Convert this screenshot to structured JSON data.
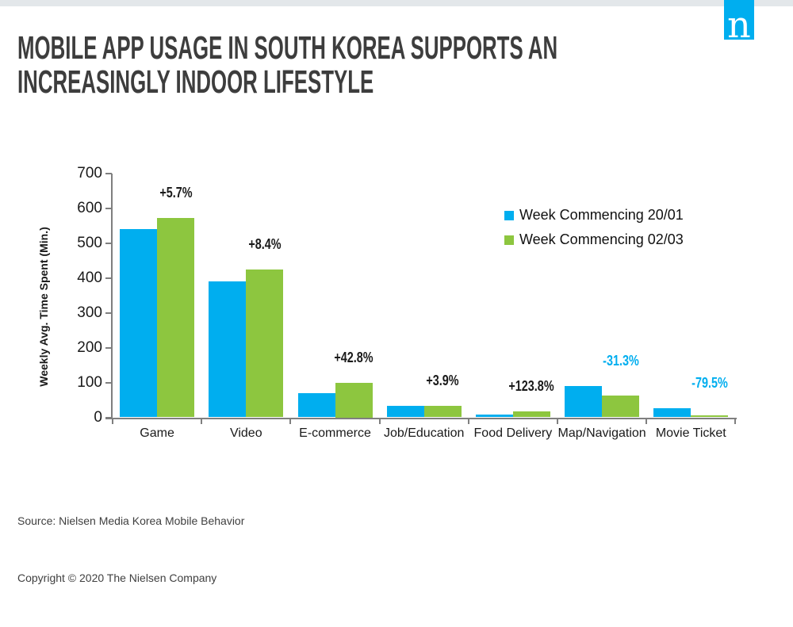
{
  "page": {
    "background_color": "#ffffff",
    "top_bar_color": "#e3e7ea"
  },
  "logo": {
    "letter": "n",
    "color": "#00aeef"
  },
  "header": {
    "title_line1": "MOBILE APP USAGE IN SOUTH KOREA SUPPORTS AN",
    "title_line2": "INCREASINGLY INDOOR LIFESTYLE",
    "color": "#3d3d3d"
  },
  "footer": {
    "source": "Source: Nielsen Media Korea Mobile Behavior",
    "copyright": "Copyright © 2020 The Nielsen Company"
  },
  "chart_data": {
    "type": "bar",
    "title": "MOBILE APP USAGE IN SOUTH KOREA SUPPORTS AN INCREASINGLY INDOOR LIFESTYLE",
    "categories": [
      "Game",
      "Video",
      "E-commerce",
      "Job/Education",
      "Food Delivery",
      "Map/Navigation",
      "Movie Ticket"
    ],
    "series": [
      {
        "name": "Week Commencing 20/01",
        "color": "#00aeef",
        "values": [
          540,
          390,
          70,
          33,
          8,
          90,
          26
        ]
      },
      {
        "name": "Week Commencing 02/03",
        "color": "#8dc63f",
        "values": [
          571,
          423,
          100,
          34,
          18,
          62,
          5.5
        ]
      }
    ],
    "change_labels": [
      {
        "text": "+5.7%",
        "color": "#1a1a1a"
      },
      {
        "text": "+8.4%",
        "color": "#1a1a1a"
      },
      {
        "text": "+42.8%",
        "color": "#1a1a1a"
      },
      {
        "text": "+3.9%",
        "color": "#1a1a1a"
      },
      {
        "text": "+123.8%",
        "color": "#1a1a1a"
      },
      {
        "text": "-31.3%",
        "color": "#00aeef"
      },
      {
        "text": "-79.5%",
        "color": "#00aeef"
      }
    ],
    "xlabel": "",
    "ylabel": "Weekly Avg. Time Spent (Min.)",
    "ylim": [
      0,
      700
    ],
    "yticks": [
      0,
      100,
      200,
      300,
      400,
      500,
      600,
      700
    ],
    "grid": false,
    "legend_position": "upper right",
    "axis_color": "#7f7f7f"
  }
}
